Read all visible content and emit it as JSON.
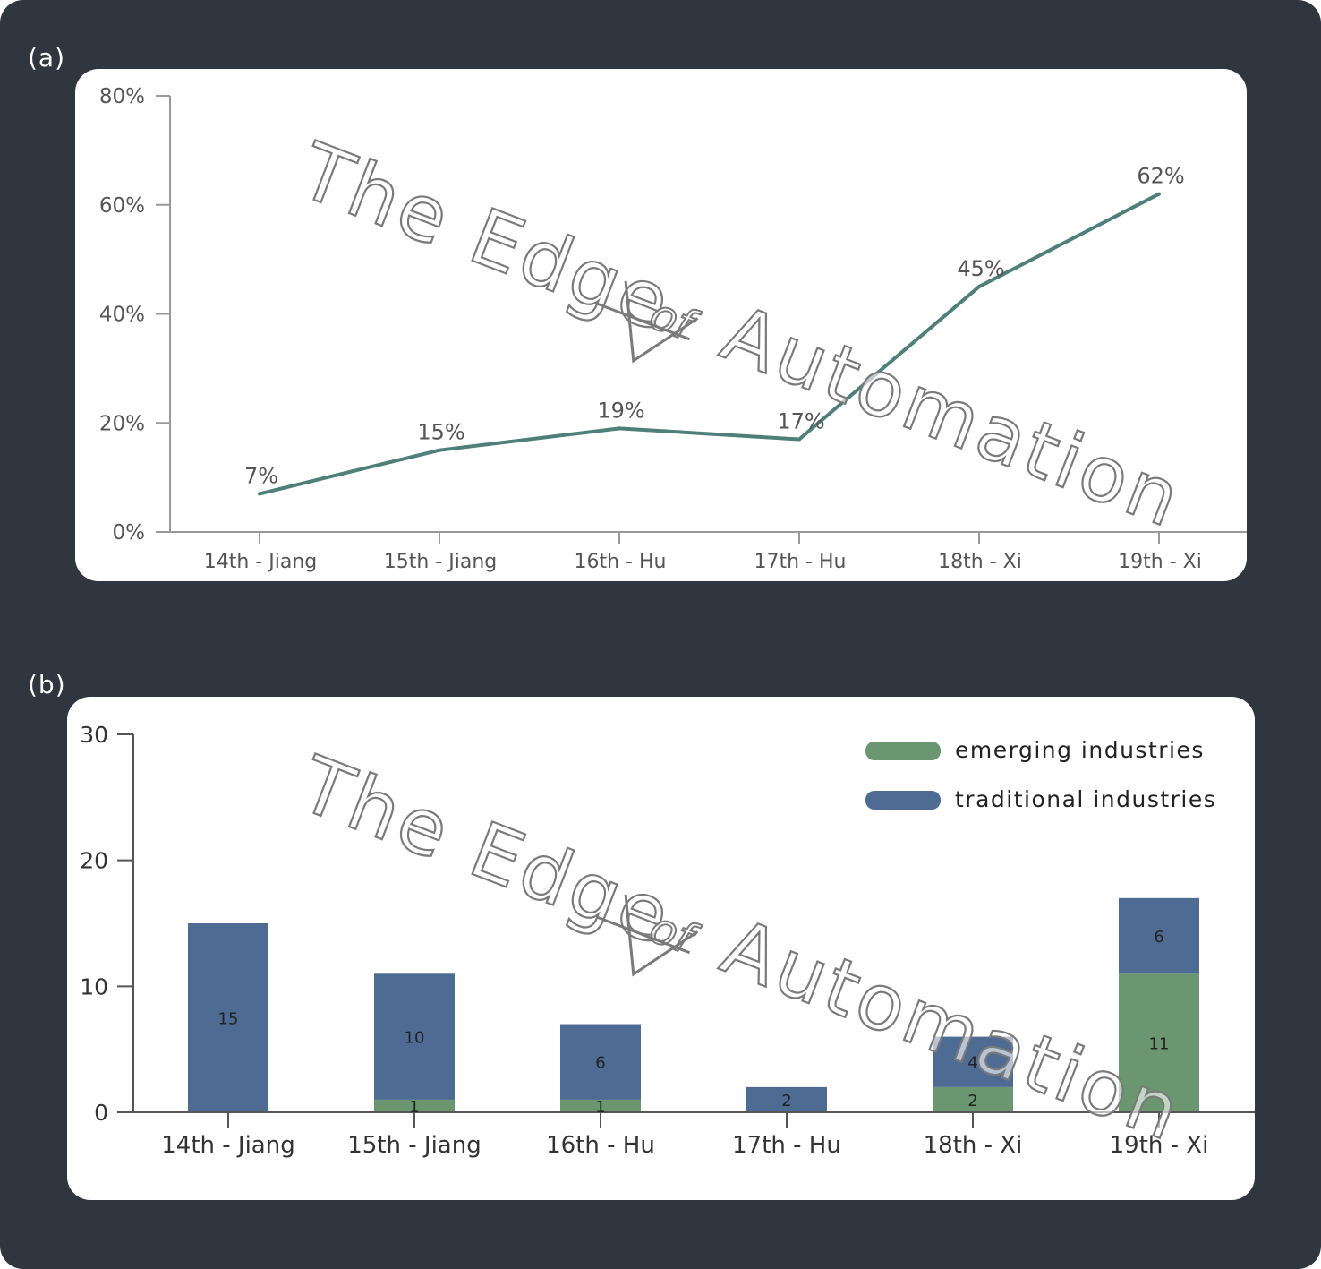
{
  "panels": {
    "a_label": "(a)",
    "b_label": "(b)"
  },
  "watermark": {
    "text_main": "The Edge",
    "text_of": "of",
    "text_end": "Automation"
  },
  "chart_data": [
    {
      "type": "line",
      "title": "",
      "categories": [
        "14th - Jiang",
        "15th - Jiang",
        "16th - Hu",
        "17th - Hu",
        "18th - Xi",
        "19th - Xi"
      ],
      "series": [
        {
          "values": [
            7,
            15,
            19,
            17,
            45,
            62
          ],
          "color": "#4e7f7a"
        }
      ],
      "data_labels": [
        "7%",
        "15%",
        "19%",
        "17%",
        "45%",
        "62%"
      ],
      "y_ticks": [
        0,
        20,
        40,
        60,
        80
      ],
      "y_tick_labels": [
        "0%",
        "20%",
        "40%",
        "60%",
        "80%"
      ],
      "ylim": [
        0,
        80
      ],
      "grid": false,
      "legend": "none"
    },
    {
      "type": "bar",
      "stacked": true,
      "title": "",
      "categories": [
        "14th - Jiang",
        "15th - Jiang",
        "16th - Hu",
        "17th - Hu",
        "18th - Xi",
        "19th - Xi"
      ],
      "series": [
        {
          "name": "emerging industries",
          "values": [
            0,
            1,
            1,
            0,
            2,
            11
          ],
          "labels": [
            "",
            "1",
            "1",
            "",
            "2",
            "11"
          ],
          "color": "#6a9670"
        },
        {
          "name": "traditional industries",
          "values": [
            15,
            10,
            6,
            2,
            4,
            6
          ],
          "labels": [
            "15",
            "10",
            "6",
            "2",
            "4",
            "6"
          ],
          "color": "#4e6b94"
        }
      ],
      "y_ticks": [
        0,
        10,
        20,
        30
      ],
      "y_tick_labels": [
        "0",
        "10",
        "20",
        "30"
      ],
      "ylim": [
        0,
        30
      ],
      "grid": false,
      "legend": "top-right"
    }
  ]
}
